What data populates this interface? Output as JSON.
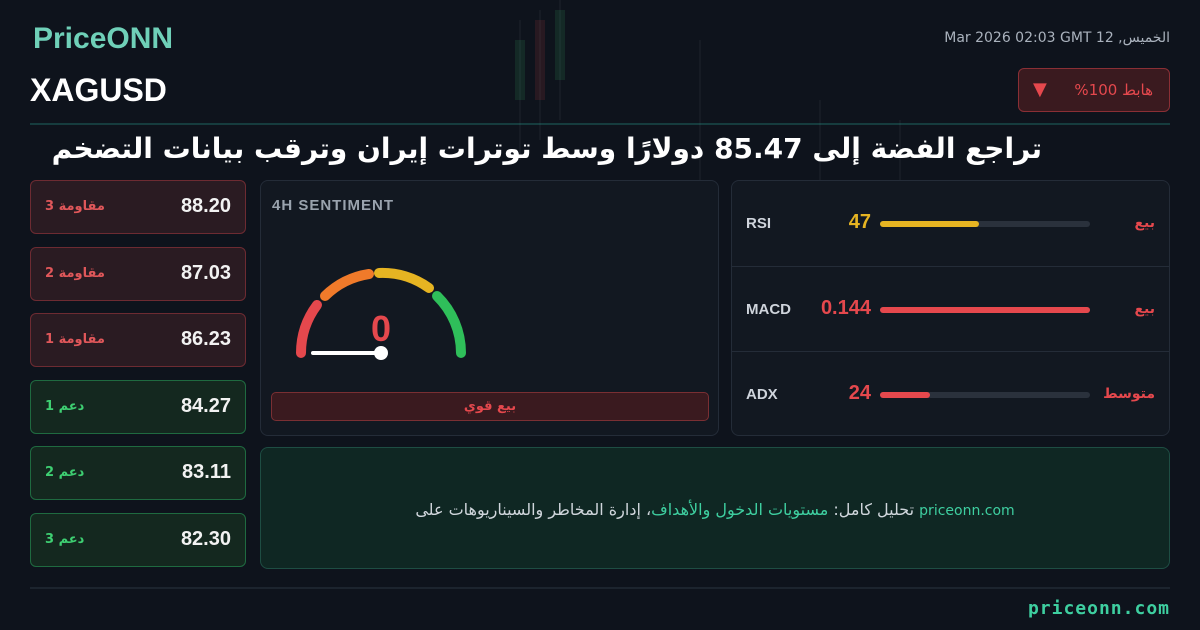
{
  "brand": "PriceONN",
  "datetime": "الخميس, 12 Mar 2026 02:03 GMT",
  "symbol": "XAGUSD",
  "badge": {
    "text": "%هابط 100",
    "arrow": "▼"
  },
  "headline": "تراجع الفضة إلى 85.47 دولارًا وسط توترات إيران وترقب بيانات التضخم",
  "levels": [
    {
      "label": "مقاومة 3",
      "value": "88.20",
      "kind": "resistance"
    },
    {
      "label": "مقاومة 2",
      "value": "87.03",
      "kind": "resistance"
    },
    {
      "label": "مقاومة 1",
      "value": "86.23",
      "kind": "resistance"
    },
    {
      "label": "دعم 1",
      "value": "84.27",
      "kind": "support"
    },
    {
      "label": "دعم 2",
      "value": "83.11",
      "kind": "support"
    },
    {
      "label": "دعم 3",
      "value": "82.30",
      "kind": "support"
    }
  ],
  "sentiment": {
    "title": "4H SENTIMENT",
    "value": 0,
    "label": "بيع قوي"
  },
  "indicators": [
    {
      "name": "RSI",
      "value": 47,
      "status": "بيع",
      "color": "#e6b422"
    },
    {
      "name": "MACD",
      "value": 0.144,
      "status": "بيع",
      "color": "#e5484d"
    },
    {
      "name": "ADX",
      "value": 24,
      "status": "متوسط",
      "color": "#e5484d"
    }
  ],
  "promo": {
    "site": "priceonn.com",
    "prefix": "تحليل كامل: ",
    "highlight": "مستويات الدخول والأهداف",
    "suffix": "، إدارة المخاطر والسيناريوهات على"
  },
  "footer": "priceonn.com"
}
